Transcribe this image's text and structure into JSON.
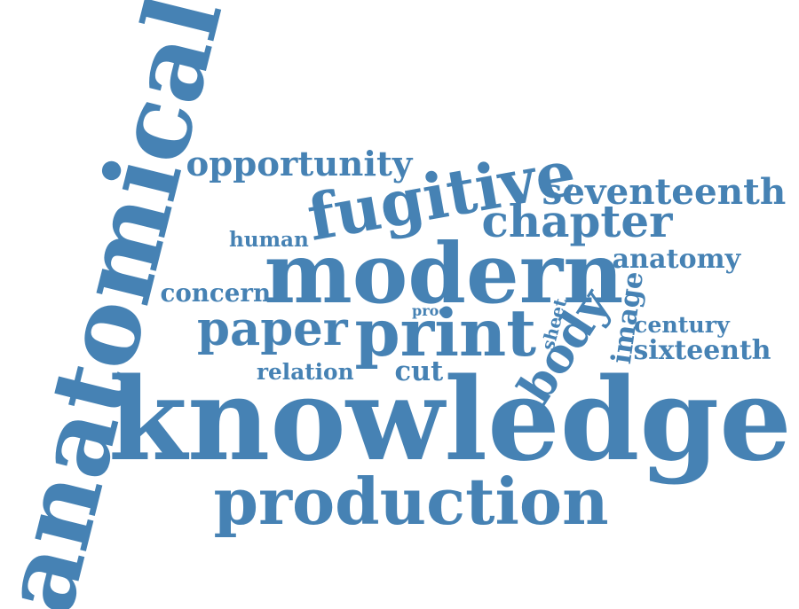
{
  "cloud": {
    "color": "#4682b4",
    "words": [
      {
        "id": "anatomical",
        "text": "anatomical"
      },
      {
        "id": "knowledge",
        "text": "knowledge"
      },
      {
        "id": "production",
        "text": "production"
      },
      {
        "id": "modern",
        "text": "modern"
      },
      {
        "id": "print",
        "text": "print"
      },
      {
        "id": "fugitive",
        "text": "fugitive"
      },
      {
        "id": "paper",
        "text": "paper"
      },
      {
        "id": "chapter",
        "text": "chapter"
      },
      {
        "id": "seventeenth",
        "text": "seventeenth"
      },
      {
        "id": "opportunity",
        "text": "opportunity"
      },
      {
        "id": "body",
        "text": "body"
      },
      {
        "id": "anatomy",
        "text": "anatomy"
      },
      {
        "id": "sixteenth",
        "text": "sixteenth"
      },
      {
        "id": "century",
        "text": "century"
      },
      {
        "id": "image",
        "text": "image"
      },
      {
        "id": "concern",
        "text": "concern"
      },
      {
        "id": "relation",
        "text": "relation"
      },
      {
        "id": "cut",
        "text": "cut"
      },
      {
        "id": "human",
        "text": "human"
      },
      {
        "id": "sheet",
        "text": "sheet"
      },
      {
        "id": "proc",
        "text": "proc"
      }
    ]
  }
}
